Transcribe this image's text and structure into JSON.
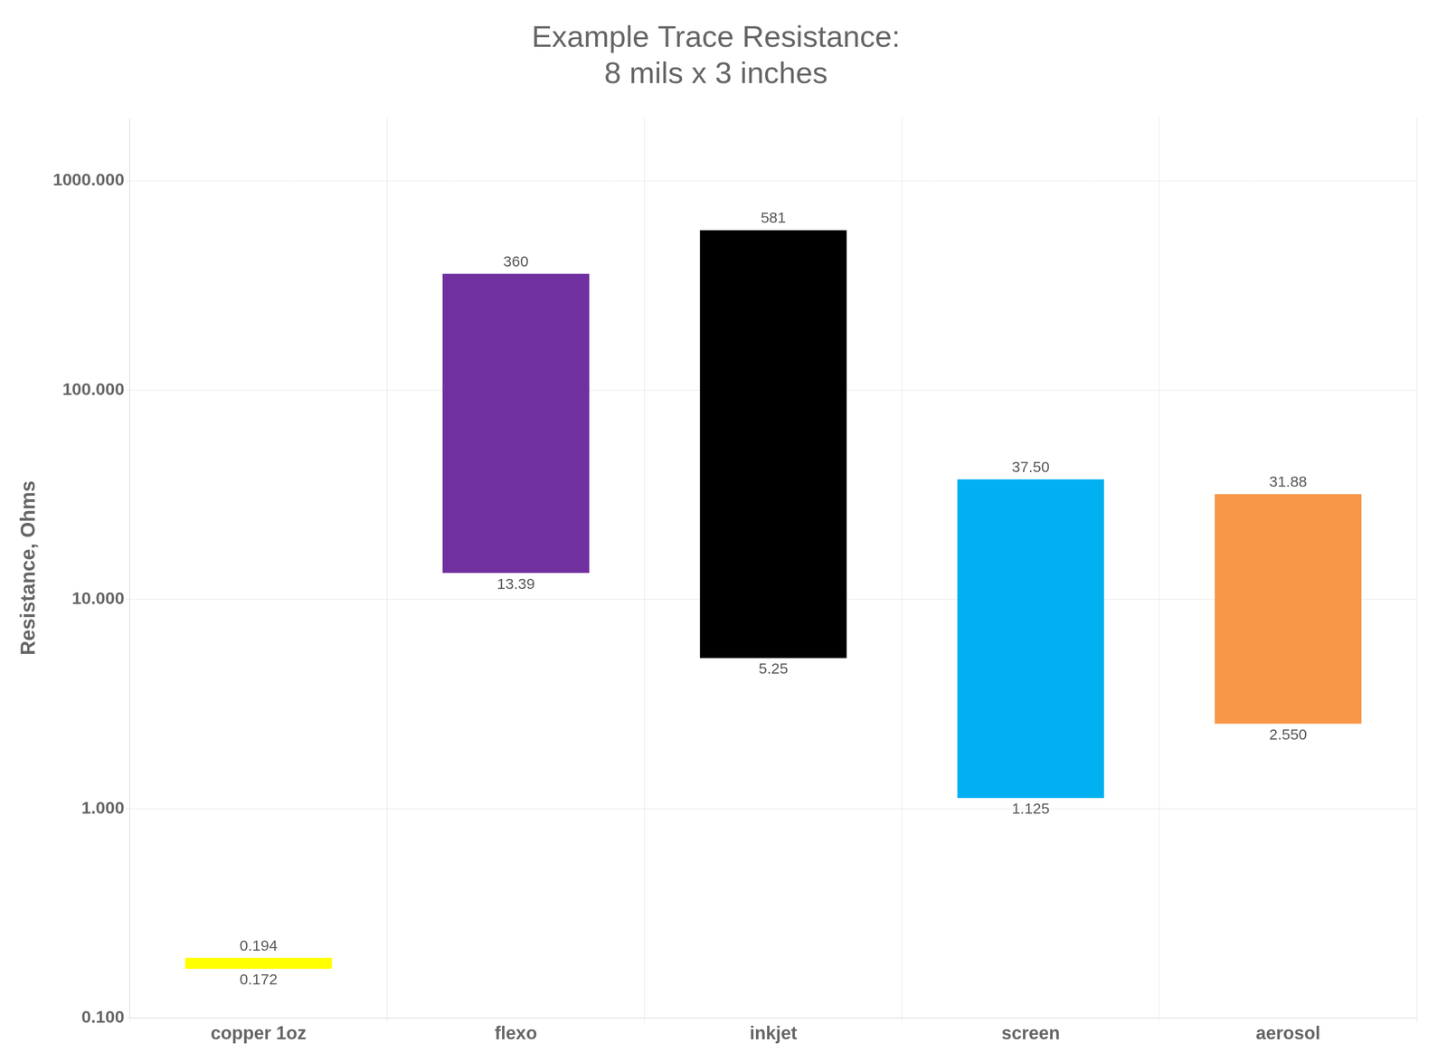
{
  "chart_data": {
    "type": "bar",
    "title": "Example Trace Resistance:\n8 mils x 3 inches",
    "ylabel": "Resistance, Ohms",
    "categories": [
      "copper 1oz",
      "flexo",
      "inkjet",
      "screen",
      "aerosol"
    ],
    "values": [
      [
        0.172,
        0.194
      ],
      [
        13.39,
        360
      ],
      [
        5.25,
        581
      ],
      [
        1.125,
        37.5
      ],
      [
        2.55,
        31.88
      ]
    ],
    "value_labels": [
      [
        "0.172",
        "0.194"
      ],
      [
        "13.39",
        "360"
      ],
      [
        "5.25",
        "581"
      ],
      [
        "1.125",
        "37.50"
      ],
      [
        "2.550",
        "31.88"
      ]
    ],
    "colors": [
      "#ffff00",
      "#7030a0",
      "#000000",
      "#00b0f0",
      "#f79646"
    ],
    "log": "y",
    "ylim": [
      0.1,
      2000
    ],
    "yticks": [
      {
        "value": 0.1,
        "label": "0.100"
      },
      {
        "value": 1,
        "label": "1.000"
      },
      {
        "value": 10,
        "label": "10.000"
      },
      {
        "value": 100,
        "label": "100.000"
      },
      {
        "value": 1000,
        "label": "1000.000"
      }
    ],
    "grid": true,
    "data_labels": true
  }
}
